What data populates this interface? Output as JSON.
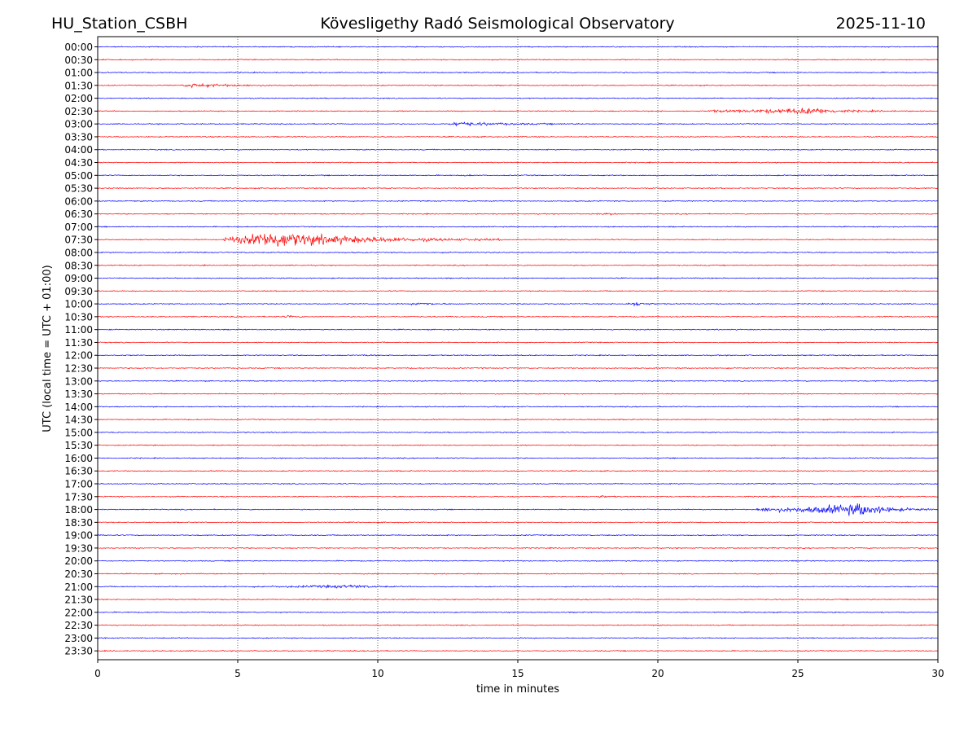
{
  "header": {
    "station": "HU_Station_CSBH",
    "observatory": "Kövesligethy Radó Seismological Observatory",
    "date": "2025-11-10"
  },
  "chart_data": {
    "type": "seismogram_helicorder",
    "title": "Kövesligethy Radó Seismological Observatory",
    "xlabel": "time in minutes",
    "ylabel": "UTC (local time = UTC + 01:00)",
    "xlim": [
      0,
      30
    ],
    "x_ticks": [
      0,
      5,
      10,
      15,
      20,
      25,
      30
    ],
    "grid": "vertical dotted lines at x ticks",
    "colors": {
      "even_rows": "#0000ff",
      "odd_rows": "#ff0000"
    },
    "rows": [
      "00:00",
      "00:30",
      "01:00",
      "01:30",
      "02:00",
      "02:30",
      "03:00",
      "03:30",
      "04:00",
      "04:30",
      "05:00",
      "05:30",
      "06:00",
      "06:30",
      "07:00",
      "07:30",
      "08:00",
      "08:30",
      "09:00",
      "09:30",
      "10:00",
      "10:30",
      "11:00",
      "11:30",
      "12:00",
      "12:30",
      "13:00",
      "13:30",
      "14:00",
      "14:30",
      "15:00",
      "15:30",
      "16:00",
      "16:30",
      "17:00",
      "17:30",
      "18:00",
      "18:30",
      "19:00",
      "19:30",
      "20:00",
      "20:30",
      "21:00",
      "21:30",
      "22:00",
      "22:30",
      "23:00",
      "23:30"
    ],
    "events": [
      {
        "row": "01:30",
        "start_min": 3.0,
        "end_min": 7.2,
        "peak_min": 3.3,
        "amplitude": 0.35
      },
      {
        "row": "02:30",
        "start_min": 21.8,
        "end_min": 28.5,
        "peak_min": 25.5,
        "amplitude": 0.55
      },
      {
        "row": "03:00",
        "start_min": 12.5,
        "end_min": 17.8,
        "peak_min": 12.8,
        "amplitude": 0.35
      },
      {
        "row": "05:00",
        "start_min": 13.0,
        "end_min": 13.6,
        "peak_min": 13.2,
        "amplitude": 0.15
      },
      {
        "row": "06:30",
        "start_min": 17.8,
        "end_min": 18.9,
        "peak_min": 18.3,
        "amplitude": 0.12
      },
      {
        "row": "07:30",
        "start_min": 4.5,
        "end_min": 14.5,
        "peak_min": 6.1,
        "amplitude": 1.6
      },
      {
        "row": "10:00",
        "start_min": 11.2,
        "end_min": 12.8,
        "peak_min": 11.5,
        "amplitude": 0.3
      },
      {
        "row": "10:00",
        "start_min": 18.9,
        "end_min": 20.0,
        "peak_min": 19.3,
        "amplitude": 0.45
      },
      {
        "row": "10:30",
        "start_min": 6.6,
        "end_min": 7.4,
        "peak_min": 6.8,
        "amplitude": 0.2
      },
      {
        "row": "12:00",
        "start_min": 9.5,
        "end_min": 10.0,
        "peak_min": 9.7,
        "amplitude": 0.15
      },
      {
        "row": "17:30",
        "start_min": 17.8,
        "end_min": 18.6,
        "peak_min": 18.0,
        "amplitude": 0.2
      },
      {
        "row": "18:00",
        "start_min": 23.5,
        "end_min": 30.0,
        "peak_min": 27.3,
        "amplitude": 1.1
      },
      {
        "row": "21:00",
        "start_min": 5.5,
        "end_min": 11.0,
        "peak_min": 9.2,
        "amplitude": 0.25
      }
    ]
  }
}
